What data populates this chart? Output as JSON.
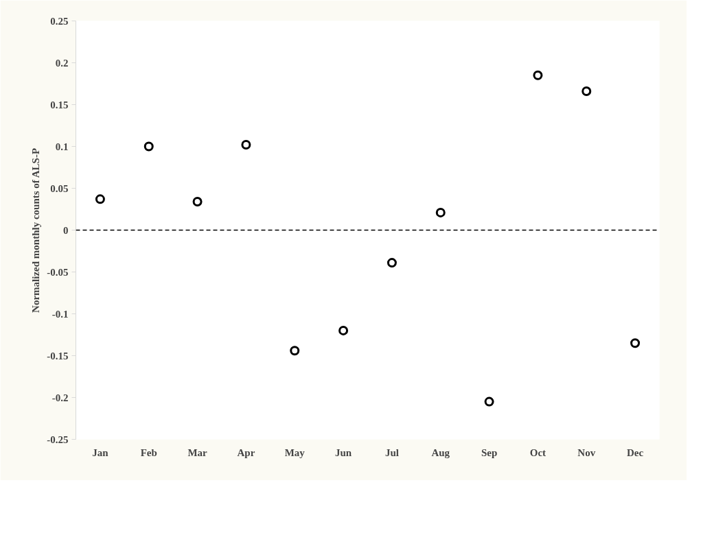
{
  "chart_data": {
    "type": "scatter",
    "ylabel": "Normalized monthly counts of ALS-P",
    "categories": [
      "Jan",
      "Feb",
      "Mar",
      "Apr",
      "May",
      "Jun",
      "Jul",
      "Aug",
      "Sep",
      "Oct",
      "Nov",
      "Dec"
    ],
    "series": [
      {
        "color": "#000000",
        "values": [
          0.037,
          0.1,
          0.034,
          0.102,
          -0.144,
          -0.12,
          -0.039,
          0.021,
          -0.205,
          0.185,
          0.166,
          -0.135
        ]
      }
    ],
    "ylim": [
      -0.25,
      0.25
    ],
    "yticks": [
      0.25,
      0.2,
      0.15,
      0.1,
      0.05,
      0,
      -0.05,
      -0.1,
      -0.15,
      -0.2,
      -0.25
    ],
    "ref_lines": [
      {
        "axis": "y",
        "value": 0,
        "line_style": "dashed",
        "color": "#000000"
      }
    ],
    "marker": "circle",
    "grid": false
  }
}
